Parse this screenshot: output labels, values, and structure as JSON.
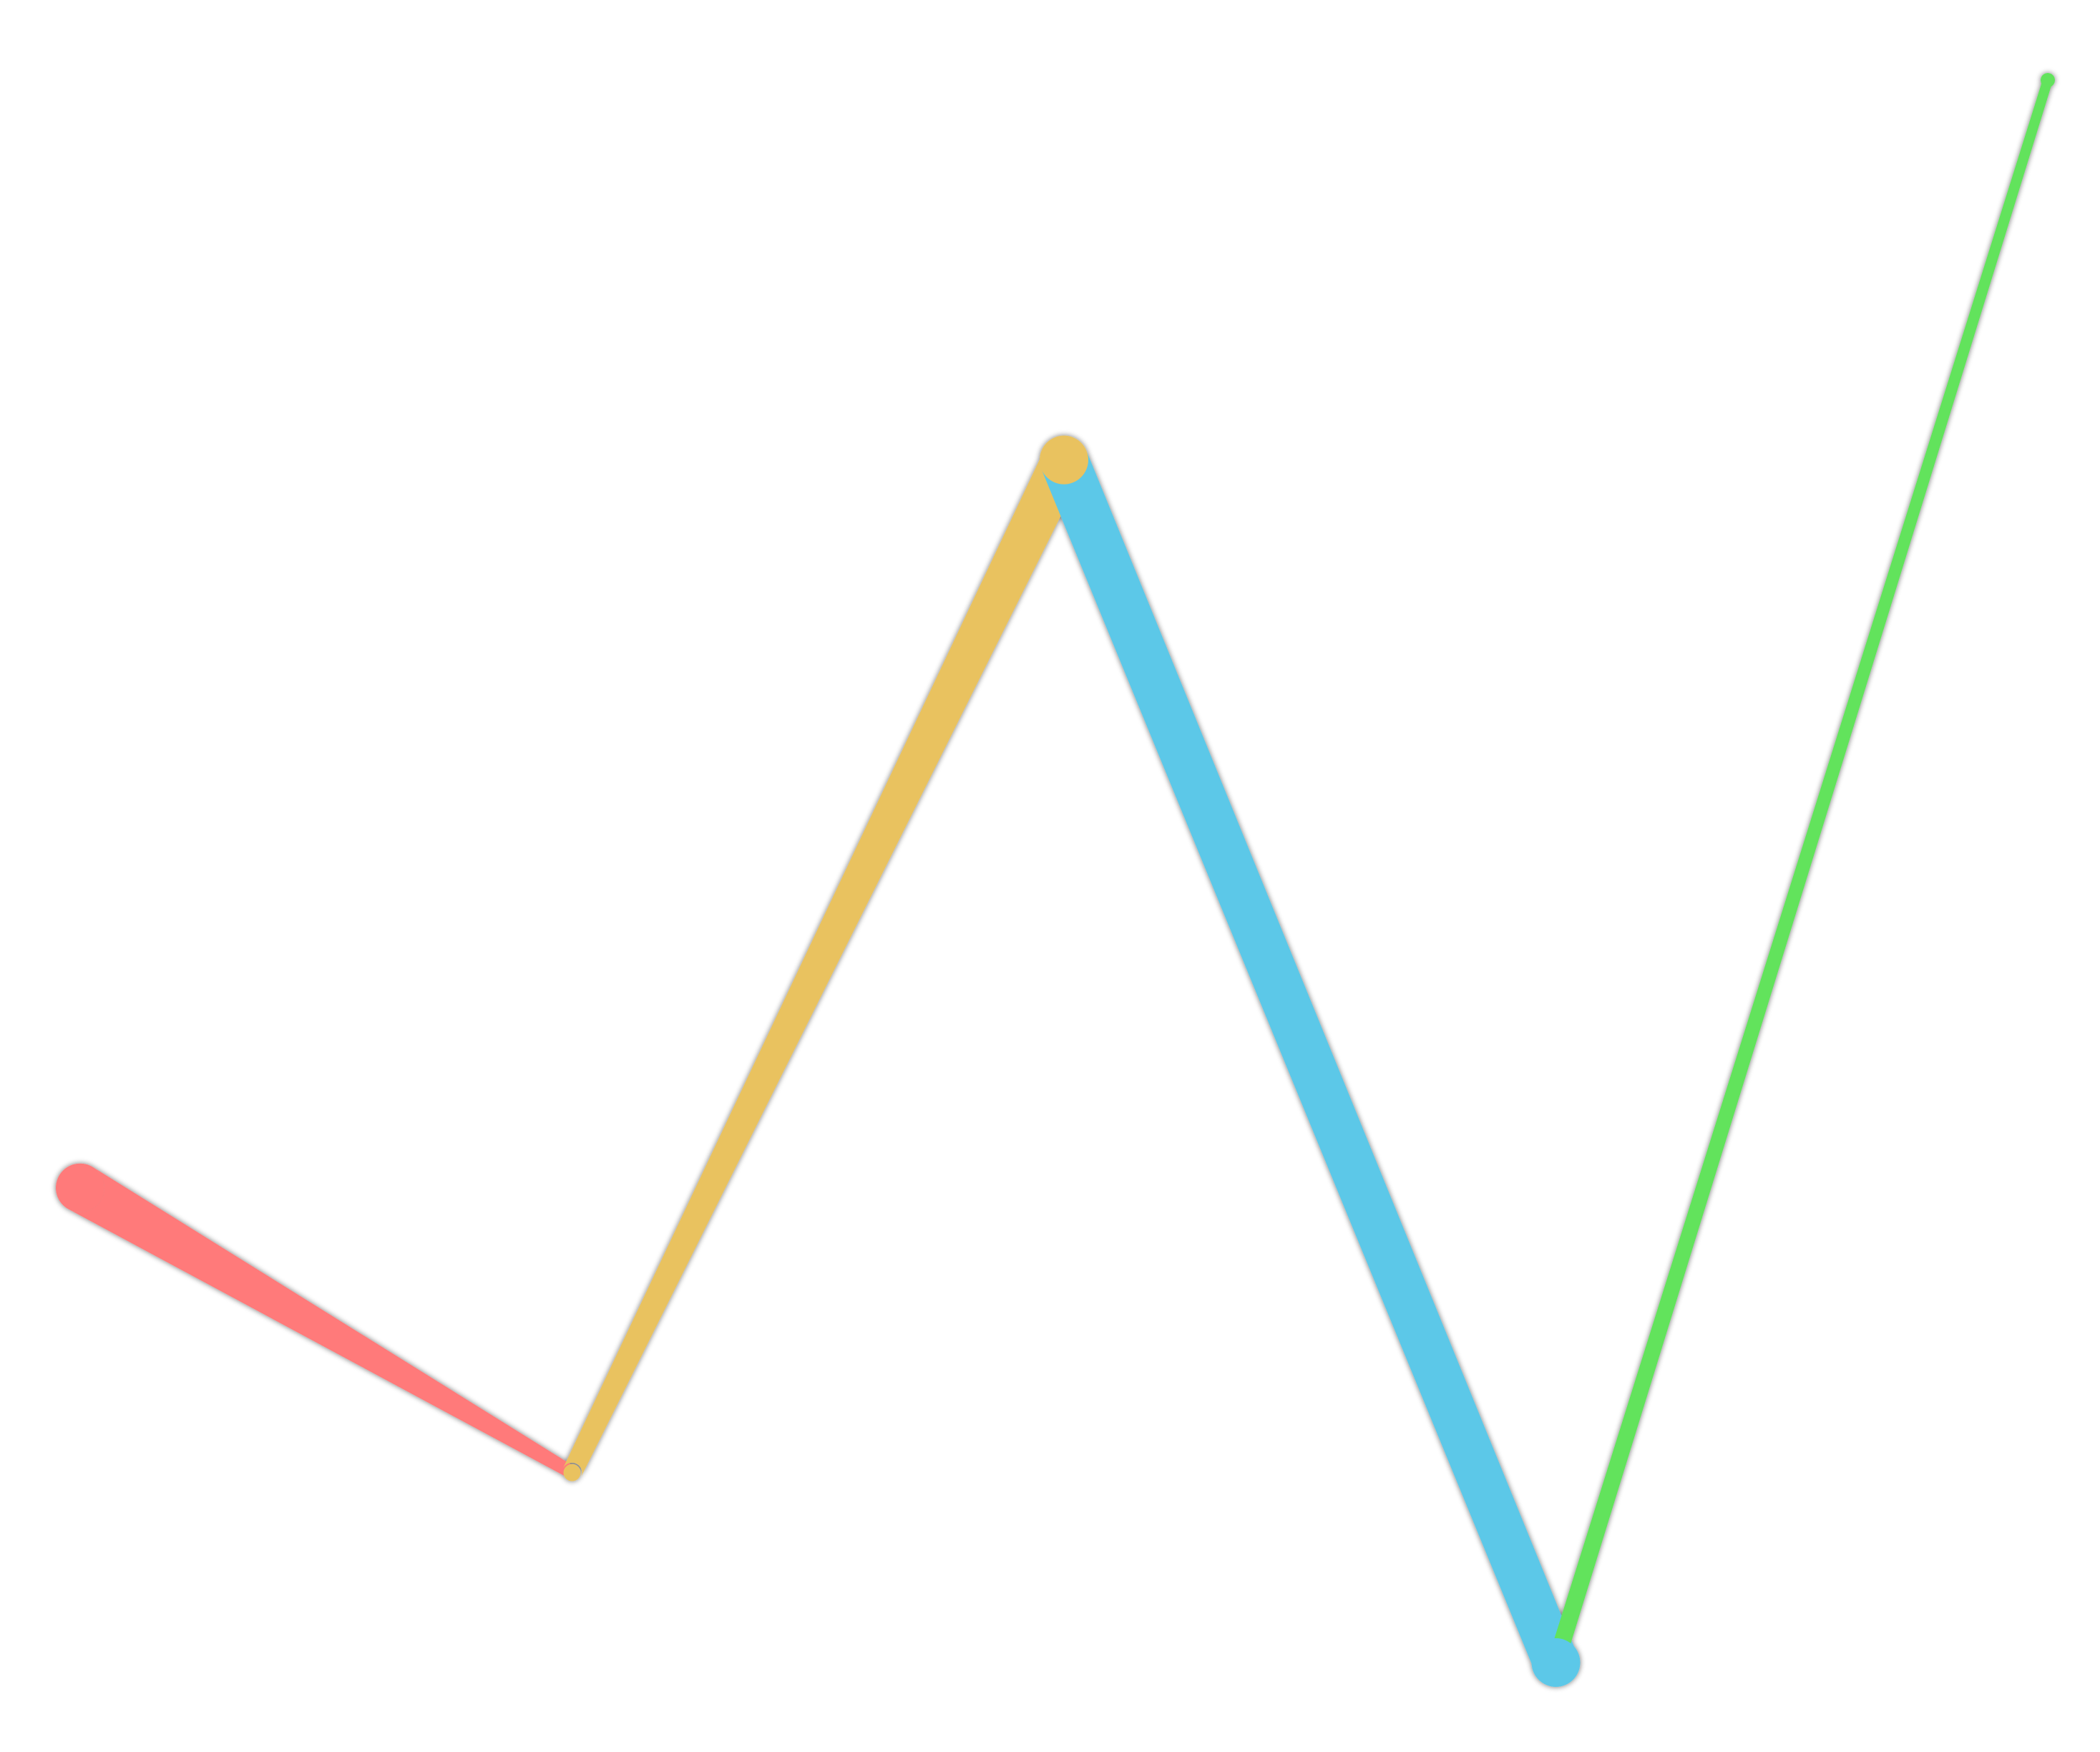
{
  "chart_data": {
    "type": "line",
    "title": "",
    "xlabel": "",
    "ylabel": "",
    "grid": false,
    "legend": "none",
    "x": [
      0,
      1,
      2,
      3,
      4
    ],
    "values": [
      30,
      12,
      76,
      0,
      100
    ],
    "ylim": [
      0,
      100
    ],
    "segment_colors": [
      "#ff7a7a",
      "#e9c25e",
      "#5cc8e8",
      "#62e35c"
    ],
    "segments": [
      {
        "from": 0,
        "to": 1
      },
      {
        "from": 1,
        "to": 2
      },
      {
        "from": 2,
        "to": 3
      },
      {
        "from": 3,
        "to": 4
      }
    ]
  }
}
